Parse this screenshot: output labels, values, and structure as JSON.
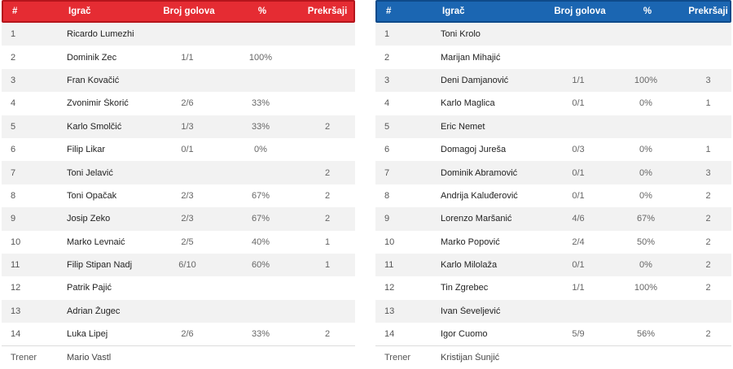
{
  "headers": {
    "num": "#",
    "player": "Igrač",
    "goals": "Broj golova",
    "pct": "%",
    "fouls": "Prekršaji"
  },
  "home": {
    "color": "#e52c33",
    "rows": [
      {
        "num": "1",
        "name": "Ricardo Lumezhi",
        "goals": "",
        "pct": "",
        "fouls": ""
      },
      {
        "num": "2",
        "name": "Dominik Zec",
        "goals": "1/1",
        "pct": "100%",
        "fouls": ""
      },
      {
        "num": "3",
        "name": "Fran Kovačić",
        "goals": "",
        "pct": "",
        "fouls": ""
      },
      {
        "num": "4",
        "name": "Zvonimir Škorić",
        "goals": "2/6",
        "pct": "33%",
        "fouls": ""
      },
      {
        "num": "5",
        "name": "Karlo Smolčić",
        "goals": "1/3",
        "pct": "33%",
        "fouls": "2"
      },
      {
        "num": "6",
        "name": "Filip Likar",
        "goals": "0/1",
        "pct": "0%",
        "fouls": ""
      },
      {
        "num": "7",
        "name": "Toni Jelavić",
        "goals": "",
        "pct": "",
        "fouls": "2"
      },
      {
        "num": "8",
        "name": "Toni Opačak",
        "goals": "2/3",
        "pct": "67%",
        "fouls": "2"
      },
      {
        "num": "9",
        "name": "Josip Zeko",
        "goals": "2/3",
        "pct": "67%",
        "fouls": "2"
      },
      {
        "num": "10",
        "name": "Marko Levnaić",
        "goals": "2/5",
        "pct": "40%",
        "fouls": "1"
      },
      {
        "num": "11",
        "name": "Filip Stipan Nadj",
        "goals": "6/10",
        "pct": "60%",
        "fouls": "1"
      },
      {
        "num": "12",
        "name": "Patrik Pajić",
        "goals": "",
        "pct": "",
        "fouls": ""
      },
      {
        "num": "13",
        "name": "Adrian Žugec",
        "goals": "",
        "pct": "",
        "fouls": ""
      },
      {
        "num": "14",
        "name": "Luka Lipej",
        "goals": "2/6",
        "pct": "33%",
        "fouls": "2"
      }
    ],
    "coach": {
      "label": "Trener",
      "name": "Mario Vastl"
    }
  },
  "away": {
    "color": "#1b66b2",
    "rows": [
      {
        "num": "1",
        "name": "Toni Krolo",
        "goals": "",
        "pct": "",
        "fouls": ""
      },
      {
        "num": "2",
        "name": "Marijan Mihajić",
        "goals": "",
        "pct": "",
        "fouls": ""
      },
      {
        "num": "3",
        "name": "Deni Damjanović",
        "goals": "1/1",
        "pct": "100%",
        "fouls": "3"
      },
      {
        "num": "4",
        "name": "Karlo Maglica",
        "goals": "0/1",
        "pct": "0%",
        "fouls": "1"
      },
      {
        "num": "5",
        "name": "Eric Nemet",
        "goals": "",
        "pct": "",
        "fouls": ""
      },
      {
        "num": "6",
        "name": "Domagoj Jureša",
        "goals": "0/3",
        "pct": "0%",
        "fouls": "1"
      },
      {
        "num": "7",
        "name": "Dominik Abramović",
        "goals": "0/1",
        "pct": "0%",
        "fouls": "3"
      },
      {
        "num": "8",
        "name": "Andrija Kaluđerović",
        "goals": "0/1",
        "pct": "0%",
        "fouls": "2"
      },
      {
        "num": "9",
        "name": "Lorenzo Maršanić",
        "goals": "4/6",
        "pct": "67%",
        "fouls": "2"
      },
      {
        "num": "10",
        "name": "Marko Popović",
        "goals": "2/4",
        "pct": "50%",
        "fouls": "2"
      },
      {
        "num": "11",
        "name": "Karlo Milolaža",
        "goals": "0/1",
        "pct": "0%",
        "fouls": "2"
      },
      {
        "num": "12",
        "name": "Tin Zgrebec",
        "goals": "1/1",
        "pct": "100%",
        "fouls": "2"
      },
      {
        "num": "13",
        "name": "Ivan Ševeljević",
        "goals": "",
        "pct": "",
        "fouls": ""
      },
      {
        "num": "14",
        "name": "Igor Cuomo",
        "goals": "5/9",
        "pct": "56%",
        "fouls": "2"
      }
    ],
    "coach": {
      "label": "Trener",
      "name": "Kristijan Šunjić"
    }
  }
}
